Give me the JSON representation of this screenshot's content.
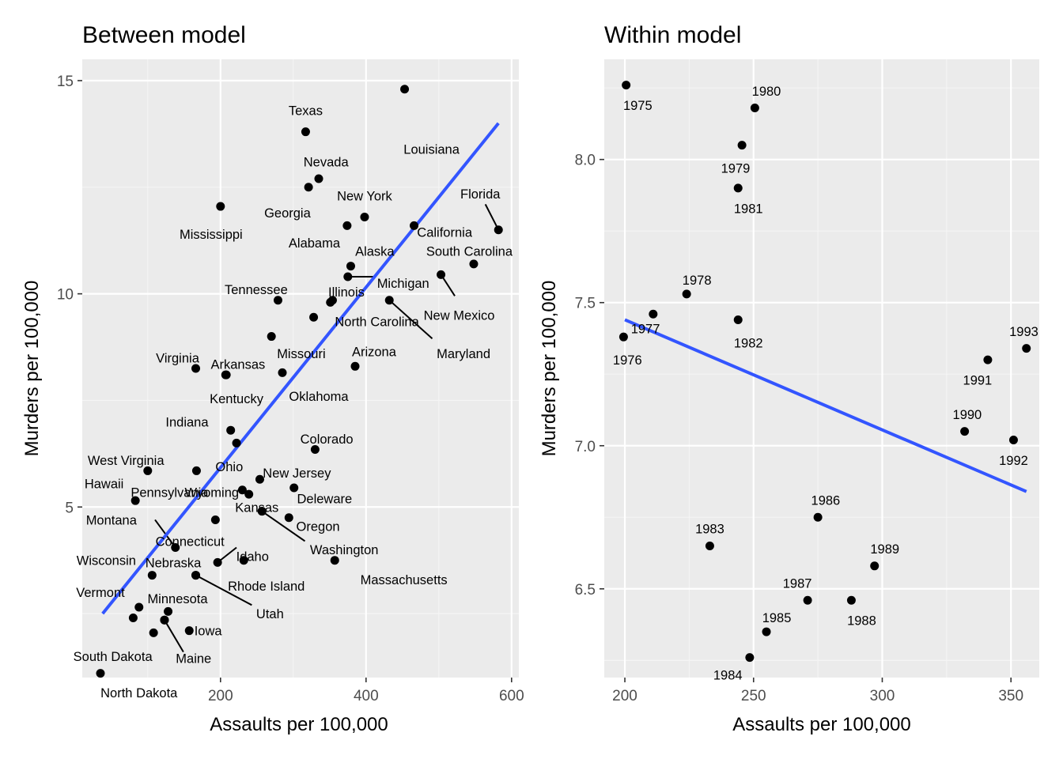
{
  "colors": {
    "panel_bg": "#ebebeb",
    "grid_major": "#ffffff",
    "grid_minor": "#f5f5f5",
    "point": "#000000",
    "fit_line": "#3355ff",
    "tick_text": "#4d4d4d"
  },
  "chart_data": [
    {
      "type": "scatter",
      "title": "Between model",
      "xlabel": "Assaults per 100,000",
      "ylabel": "Murders per 100,000",
      "xlim": [
        10,
        610
      ],
      "ylim": [
        1,
        15.5
      ],
      "xticks": [
        200,
        400,
        600
      ],
      "yticks": [
        5,
        10,
        15
      ],
      "xminor": [
        100,
        300,
        500
      ],
      "yminor": [
        2.5,
        7.5,
        12.5
      ],
      "grid": true,
      "fit_line": [
        [
          38,
          2.5
        ],
        [
          582,
          14
        ]
      ],
      "points": [
        {
          "label": "Louisiana",
          "x": 453,
          "y": 14.8,
          "lx": 490,
          "ly": 13.4,
          "anchor": "middle"
        },
        {
          "label": "Texas",
          "x": 317,
          "y": 13.8,
          "lx": 317,
          "ly": 14.3,
          "anchor": "middle"
        },
        {
          "label": "Nevada",
          "x": 335,
          "y": 12.7,
          "lx": 345,
          "ly": 13.1,
          "anchor": "middle"
        },
        {
          "label": "Georgia",
          "x": 321,
          "y": 12.5,
          "lx": 292,
          "ly": 11.9,
          "anchor": "middle"
        },
        {
          "label": "Mississippi",
          "x": 200,
          "y": 12.05,
          "lx": 187,
          "ly": 11.4,
          "anchor": "middle"
        },
        {
          "label": "New York",
          "x": 398,
          "y": 11.8,
          "lx": 398,
          "ly": 12.3,
          "anchor": "middle"
        },
        {
          "label": "Alabama",
          "x": 374,
          "y": 11.6,
          "lx": 329,
          "ly": 11.2,
          "anchor": "middle"
        },
        {
          "label": "California",
          "x": 466,
          "y": 11.6,
          "lx": 508,
          "ly": 11.45,
          "anchor": "middle"
        },
        {
          "label": "Florida",
          "x": 582,
          "y": 11.5,
          "lx": 557,
          "ly": 12.35,
          "anchor": "middle",
          "lineTo": [
            564,
            12.1
          ]
        },
        {
          "label": "Alaska",
          "x": 379,
          "y": 10.65,
          "lx": 412,
          "ly": 11.0,
          "anchor": "middle"
        },
        {
          "label": "South Carolina",
          "x": 548,
          "y": 10.7,
          "lx": 542,
          "ly": 11.0,
          "anchor": "middle"
        },
        {
          "label": "Michigan",
          "x": 375,
          "y": 10.4,
          "lx": 451,
          "ly": 10.25,
          "anchor": "middle",
          "lineTo": [
            412,
            10.4
          ]
        },
        {
          "label": "New Mexico",
          "x": 503,
          "y": 10.45,
          "lx": 528,
          "ly": 9.5,
          "anchor": "middle",
          "lineTo": [
            522,
            9.95
          ]
        },
        {
          "label": "Tennessee",
          "x": 279,
          "y": 9.85,
          "lx": 249,
          "ly": 10.1,
          "anchor": "middle"
        },
        {
          "label": "Illinois",
          "x": 354,
          "y": 9.85,
          "lx": 373,
          "ly": 10.05,
          "anchor": "middle"
        },
        {
          "label": "Maryland",
          "x": 432,
          "y": 9.85,
          "lx": 534,
          "ly": 8.6,
          "anchor": "middle",
          "lineTo": [
            491,
            8.95
          ]
        },
        {
          "label": "North Carolina",
          "x": 351,
          "y": 9.8,
          "lx": 415,
          "ly": 9.35,
          "anchor": "middle"
        },
        {
          "label": "(unlabeled)",
          "x": 328,
          "y": 9.45,
          "lx": 0,
          "ly": 0,
          "anchor": "none"
        },
        {
          "label": "Missouri",
          "x": 270,
          "y": 9.0,
          "lx": 311,
          "ly": 8.6,
          "anchor": "middle"
        },
        {
          "label": "Arizona",
          "x": 385,
          "y": 8.3,
          "lx": 411,
          "ly": 8.65,
          "anchor": "middle"
        },
        {
          "label": "Virginia",
          "x": 166,
          "y": 8.25,
          "lx": 141,
          "ly": 8.5,
          "anchor": "middle"
        },
        {
          "label": "Arkansas",
          "x": 208,
          "y": 8.1,
          "lx": 224,
          "ly": 8.35,
          "anchor": "middle"
        },
        {
          "label": "Oklahoma",
          "x": 285,
          "y": 8.15,
          "lx": 335,
          "ly": 7.6,
          "anchor": "middle"
        },
        {
          "label": "Kentucky",
          "x": 207,
          "y": 8.1,
          "lx": 222,
          "ly": 7.55,
          "anchor": "middle"
        },
        {
          "label": "Indiana",
          "x": 214,
          "y": 6.8,
          "lx": 154,
          "ly": 7.0,
          "anchor": "middle"
        },
        {
          "label": "(unlabeled)",
          "x": 222,
          "y": 6.5,
          "lx": 0,
          "ly": 0,
          "anchor": "none"
        },
        {
          "label": "Colorado",
          "x": 330,
          "y": 6.35,
          "lx": 346,
          "ly": 6.6,
          "anchor": "middle"
        },
        {
          "label": "West Virginia",
          "x": 100,
          "y": 5.85,
          "lx": 70,
          "ly": 6.1,
          "anchor": "middle"
        },
        {
          "label": "Ohio",
          "x": 167,
          "y": 5.85,
          "lx": 212,
          "ly": 5.95,
          "anchor": "middle"
        },
        {
          "label": "New Jersey",
          "x": 254,
          "y": 5.65,
          "lx": 305,
          "ly": 5.8,
          "anchor": "middle"
        },
        {
          "label": "Hawaii",
          "x": 83,
          "y": 5.15,
          "lx": 40,
          "ly": 5.55,
          "anchor": "middle"
        },
        {
          "label": "Pennsylvania",
          "x": 230,
          "y": 5.4,
          "lx": 130,
          "ly": 5.35,
          "anchor": "middle"
        },
        {
          "label": "Wyoming",
          "x": 239,
          "y": 5.3,
          "lx": 188,
          "ly": 5.35,
          "anchor": "middle"
        },
        {
          "label": "Deleware",
          "x": 301,
          "y": 5.45,
          "lx": 343,
          "ly": 5.2,
          "anchor": "middle"
        },
        {
          "label": "Kansas",
          "x": 257,
          "y": 4.9,
          "lx": 250,
          "ly": 5.0,
          "anchor": "middle"
        },
        {
          "label": "Oregon",
          "x": 294,
          "y": 4.75,
          "lx": 334,
          "ly": 4.55,
          "anchor": "middle"
        },
        {
          "label": "Washington",
          "x": 257,
          "y": 4.9,
          "lx": 370,
          "ly": 4.0,
          "anchor": "middle",
          "lineTo": [
            316,
            4.2
          ]
        },
        {
          "label": "Montana",
          "x": 193,
          "y": 4.7,
          "lx": 50,
          "ly": 4.7,
          "anchor": "middle"
        },
        {
          "label": "Connecticut",
          "x": 138,
          "y": 4.05,
          "lx": 158,
          "ly": 4.2,
          "anchor": "middle",
          "lineTo": [
            110,
            4.7
          ]
        },
        {
          "label": "Idaho",
          "x": 196,
          "y": 3.7,
          "lx": 244,
          "ly": 3.85,
          "anchor": "middle",
          "lineTo": [
            222,
            4.05
          ]
        },
        {
          "label": "Rhode Island",
          "x": 232,
          "y": 3.75,
          "lx": 263,
          "ly": 3.15,
          "anchor": "middle"
        },
        {
          "label": "Massachusetts",
          "x": 357,
          "y": 3.75,
          "lx": 452,
          "ly": 3.3,
          "anchor": "middle"
        },
        {
          "label": "Wisconsin",
          "x": 106,
          "y": 3.4,
          "lx": 43,
          "ly": 3.75,
          "anchor": "middle"
        },
        {
          "label": "Nebraska",
          "x": 166,
          "y": 3.4,
          "lx": 135,
          "ly": 3.7,
          "anchor": "middle"
        },
        {
          "label": "Utah",
          "x": 166,
          "y": 3.4,
          "lx": 268,
          "ly": 2.5,
          "anchor": "middle",
          "lineTo": [
            243,
            2.7
          ]
        },
        {
          "label": "Vermont",
          "x": 88,
          "y": 2.65,
          "lx": 35,
          "ly": 3.0,
          "anchor": "middle"
        },
        {
          "label": "Minnesota",
          "x": 128,
          "y": 2.55,
          "lx": 141,
          "ly": 2.85,
          "anchor": "middle"
        },
        {
          "label": "(unlabeled)",
          "x": 80,
          "y": 2.4,
          "lx": 0,
          "ly": 0,
          "anchor": "none"
        },
        {
          "label": "(unlabeled)",
          "x": 123,
          "y": 2.35,
          "lx": 0,
          "ly": 0,
          "anchor": "none"
        },
        {
          "label": "Iowa",
          "x": 157,
          "y": 2.1,
          "lx": 183,
          "ly": 2.1,
          "anchor": "middle"
        },
        {
          "label": "Maine",
          "x": 123,
          "y": 2.35,
          "lx": 163,
          "ly": 1.45,
          "anchor": "middle",
          "lineTo": [
            149,
            1.6
          ]
        },
        {
          "label": "South Dakota",
          "x": 108,
          "y": 2.05,
          "lx": 52,
          "ly": 1.5,
          "anchor": "middle"
        },
        {
          "label": "North Dakota",
          "x": 35,
          "y": 1.1,
          "lx": 88,
          "ly": 0.65,
          "anchor": "middle"
        }
      ]
    },
    {
      "type": "scatter",
      "title": "Within model",
      "xlabel": "Assaults per 100,000",
      "ylabel": "Murders per 100,000",
      "xlim": [
        192,
        361
      ],
      "ylim": [
        6.19,
        8.35
      ],
      "xticks": [
        200,
        250,
        300,
        350
      ],
      "yticks": [
        6.5,
        7.0,
        7.5,
        8.0
      ],
      "xminor": [
        225,
        275,
        325
      ],
      "yminor": [
        6.25,
        6.75,
        7.25,
        7.75,
        8.25
      ],
      "grid": true,
      "fit_line": [
        [
          200,
          7.44
        ],
        [
          356,
          6.84
        ]
      ],
      "points": [
        {
          "label": "1975",
          "x": 200.5,
          "y": 8.26,
          "lx": 205,
          "ly": 8.19
        },
        {
          "label": "1976",
          "x": 199.5,
          "y": 7.38,
          "lx": 201,
          "ly": 7.3
        },
        {
          "label": "1977",
          "x": 211,
          "y": 7.46,
          "lx": 208,
          "ly": 7.41
        },
        {
          "label": "1978",
          "x": 224,
          "y": 7.53,
          "lx": 228,
          "ly": 7.58
        },
        {
          "label": "1979",
          "x": 245.5,
          "y": 8.05,
          "lx": 243,
          "ly": 7.97
        },
        {
          "label": "1980",
          "x": 250.5,
          "y": 8.18,
          "lx": 255,
          "ly": 8.24
        },
        {
          "label": "1981",
          "x": 244,
          "y": 7.9,
          "lx": 248,
          "ly": 7.83
        },
        {
          "label": "1982",
          "x": 244,
          "y": 7.44,
          "lx": 248,
          "ly": 7.36
        },
        {
          "label": "1983",
          "x": 233,
          "y": 6.65,
          "lx": 233,
          "ly": 6.71
        },
        {
          "label": "1984",
          "x": 248.5,
          "y": 6.26,
          "lx": 240,
          "ly": 6.2
        },
        {
          "label": "1985",
          "x": 255,
          "y": 6.35,
          "lx": 259,
          "ly": 6.4
        },
        {
          "label": "1986",
          "x": 275,
          "y": 6.75,
          "lx": 278,
          "ly": 6.81
        },
        {
          "label": "1987",
          "x": 271,
          "y": 6.46,
          "lx": 267,
          "ly": 6.52
        },
        {
          "label": "1988",
          "x": 288,
          "y": 6.46,
          "lx": 292,
          "ly": 6.39
        },
        {
          "label": "1989",
          "x": 297,
          "y": 6.58,
          "lx": 301,
          "ly": 6.64
        },
        {
          "label": "1990",
          "x": 332,
          "y": 7.05,
          "lx": 333,
          "ly": 7.11
        },
        {
          "label": "1991",
          "x": 341,
          "y": 7.3,
          "lx": 337,
          "ly": 7.23
        },
        {
          "label": "1992",
          "x": 351,
          "y": 7.02,
          "lx": 351,
          "ly": 6.95
        },
        {
          "label": "1993",
          "x": 356,
          "y": 7.34,
          "lx": 355,
          "ly": 7.4
        }
      ]
    }
  ]
}
